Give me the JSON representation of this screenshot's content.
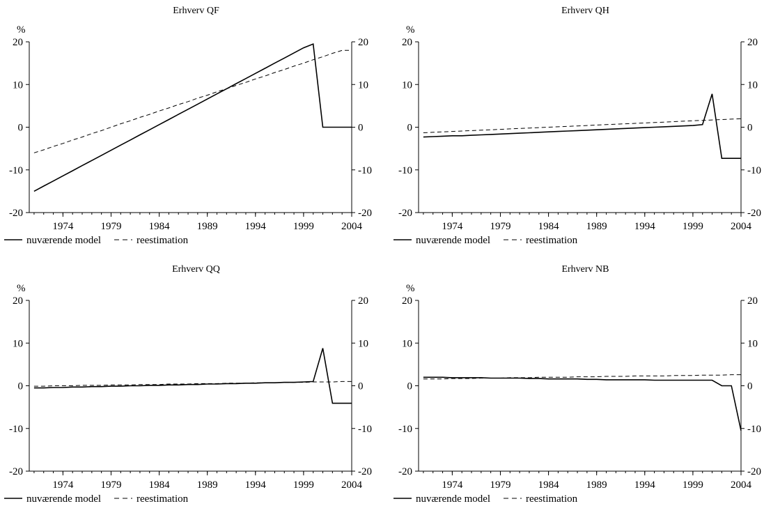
{
  "chart_data": [
    {
      "type": "line",
      "title": "Erhverv QF",
      "unit_label": "%",
      "ylim": [
        -20,
        20
      ],
      "yticks": [
        -20,
        -10,
        0,
        10,
        20
      ],
      "xlim": [
        1970.5,
        2004
      ],
      "xticks": [
        1974,
        1979,
        1984,
        1989,
        1994,
        1999,
        2004
      ],
      "grid": false,
      "legend_placement": "bottom-left",
      "x": [
        1971,
        1972,
        1973,
        1974,
        1975,
        1976,
        1977,
        1978,
        1979,
        1980,
        1981,
        1982,
        1983,
        1984,
        1985,
        1986,
        1987,
        1988,
        1989,
        1990,
        1991,
        1992,
        1993,
        1994,
        1995,
        1996,
        1997,
        1998,
        1999,
        2000,
        2001,
        2002,
        2003,
        2004
      ],
      "series": [
        {
          "name": "nuværende model",
          "style": "solid",
          "values": [
            -15.0,
            -13.8,
            -12.6,
            -11.4,
            -10.2,
            -9.0,
            -7.8,
            -6.6,
            -5.4,
            -4.2,
            -3.0,
            -1.8,
            -0.6,
            0.6,
            1.8,
            3.0,
            4.2,
            5.4,
            6.6,
            7.8,
            9.0,
            10.2,
            11.4,
            12.6,
            13.8,
            15.0,
            16.2,
            17.4,
            18.6,
            19.5,
            0.0,
            0.0,
            0.0,
            0.0
          ]
        },
        {
          "name": "reestimation",
          "style": "dashed",
          "values": [
            -6.0,
            -5.3,
            -4.5,
            -3.8,
            -3.0,
            -2.3,
            -1.5,
            -0.8,
            0.0,
            0.8,
            1.5,
            2.3,
            3.0,
            3.8,
            4.5,
            5.3,
            6.0,
            6.8,
            7.5,
            8.3,
            9.0,
            9.8,
            10.5,
            11.3,
            12.0,
            12.8,
            13.5,
            14.3,
            15.0,
            15.8,
            16.5,
            17.3,
            18.0,
            18.0
          ]
        }
      ]
    },
    {
      "type": "line",
      "title": "Erhverv QH",
      "unit_label": "%",
      "ylim": [
        -20,
        20
      ],
      "yticks": [
        -20,
        -10,
        0,
        10,
        20
      ],
      "xlim": [
        1970.5,
        2004
      ],
      "xticks": [
        1974,
        1979,
        1984,
        1989,
        1994,
        1999,
        2004
      ],
      "grid": false,
      "legend_placement": "bottom-left",
      "x": [
        1971,
        1972,
        1973,
        1974,
        1975,
        1976,
        1977,
        1978,
        1979,
        1980,
        1981,
        1982,
        1983,
        1984,
        1985,
        1986,
        1987,
        1988,
        1989,
        1990,
        1991,
        1992,
        1993,
        1994,
        1995,
        1996,
        1997,
        1998,
        1999,
        2000,
        2001,
        2002,
        2003,
        2004
      ],
      "series": [
        {
          "name": "nuværende model",
          "style": "solid",
          "values": [
            -2.3,
            -2.2,
            -2.1,
            -2.0,
            -2.0,
            -1.9,
            -1.8,
            -1.7,
            -1.6,
            -1.5,
            -1.4,
            -1.3,
            -1.2,
            -1.1,
            -1.0,
            -0.9,
            -0.8,
            -0.7,
            -0.6,
            -0.5,
            -0.4,
            -0.3,
            -0.2,
            -0.1,
            0.0,
            0.1,
            0.2,
            0.3,
            0.4,
            0.6,
            7.8,
            -7.3,
            -7.3,
            -7.3
          ]
        },
        {
          "name": "reestimation",
          "style": "dashed",
          "values": [
            -1.3,
            -1.2,
            -1.1,
            -1.0,
            -0.9,
            -0.8,
            -0.7,
            -0.6,
            -0.5,
            -0.4,
            -0.3,
            -0.2,
            -0.1,
            0.0,
            0.1,
            0.2,
            0.3,
            0.4,
            0.5,
            0.6,
            0.7,
            0.8,
            0.9,
            1.0,
            1.1,
            1.2,
            1.3,
            1.4,
            1.5,
            1.6,
            1.7,
            1.8,
            1.9,
            2.0
          ]
        }
      ]
    },
    {
      "type": "line",
      "title": "Erhverv QQ",
      "unit_label": "%",
      "ylim": [
        -20,
        20
      ],
      "yticks": [
        -20,
        -10,
        0,
        10,
        20
      ],
      "xlim": [
        1970.5,
        2004
      ],
      "xticks": [
        1974,
        1979,
        1984,
        1989,
        1994,
        1999,
        2004
      ],
      "grid": false,
      "legend_placement": "bottom-left",
      "x": [
        1971,
        1972,
        1973,
        1974,
        1975,
        1976,
        1977,
        1978,
        1979,
        1980,
        1981,
        1982,
        1983,
        1984,
        1985,
        1986,
        1987,
        1988,
        1989,
        1990,
        1991,
        1992,
        1993,
        1994,
        1995,
        1996,
        1997,
        1998,
        1999,
        2000,
        2001,
        2002,
        2003,
        2004
      ],
      "series": [
        {
          "name": "nuværende model",
          "style": "solid",
          "values": [
            -0.5,
            -0.5,
            -0.4,
            -0.4,
            -0.3,
            -0.3,
            -0.2,
            -0.2,
            -0.1,
            -0.1,
            0.0,
            0.0,
            0.1,
            0.1,
            0.2,
            0.2,
            0.3,
            0.3,
            0.4,
            0.4,
            0.5,
            0.5,
            0.6,
            0.6,
            0.7,
            0.7,
            0.8,
            0.8,
            0.9,
            1.0,
            8.8,
            -4.1,
            -4.1,
            -4.1
          ]
        },
        {
          "name": "reestimation",
          "style": "dashed",
          "values": [
            -0.1,
            -0.1,
            0.0,
            0.0,
            0.0,
            0.1,
            0.1,
            0.1,
            0.2,
            0.2,
            0.2,
            0.3,
            0.3,
            0.3,
            0.4,
            0.4,
            0.4,
            0.5,
            0.5,
            0.5,
            0.6,
            0.6,
            0.6,
            0.7,
            0.7,
            0.7,
            0.8,
            0.8,
            0.8,
            0.9,
            0.9,
            0.9,
            1.0,
            1.0
          ]
        }
      ]
    },
    {
      "type": "line",
      "title": "Erhverv NB",
      "unit_label": "%",
      "ylim": [
        -20,
        20
      ],
      "yticks": [
        -20,
        -10,
        0,
        10,
        20
      ],
      "xlim": [
        1970.5,
        2004
      ],
      "xticks": [
        1974,
        1979,
        1984,
        1989,
        1994,
        1999,
        2004
      ],
      "grid": false,
      "legend_placement": "bottom-left",
      "x": [
        1971,
        1972,
        1973,
        1974,
        1975,
        1976,
        1977,
        1978,
        1979,
        1980,
        1981,
        1982,
        1983,
        1984,
        1985,
        1986,
        1987,
        1988,
        1989,
        1990,
        1991,
        1992,
        1993,
        1994,
        1995,
        1996,
        1997,
        1998,
        1999,
        2000,
        2001,
        2002,
        2003,
        2004
      ],
      "series": [
        {
          "name": "nuværende model",
          "style": "solid",
          "values": [
            2.0,
            2.0,
            2.0,
            1.9,
            1.9,
            1.9,
            1.9,
            1.8,
            1.8,
            1.8,
            1.8,
            1.7,
            1.7,
            1.6,
            1.6,
            1.6,
            1.6,
            1.5,
            1.5,
            1.4,
            1.4,
            1.4,
            1.4,
            1.4,
            1.3,
            1.3,
            1.3,
            1.3,
            1.3,
            1.3,
            1.3,
            0.0,
            0.0,
            -10.5
          ]
        },
        {
          "name": "reestimation",
          "style": "dashed",
          "values": [
            1.6,
            1.6,
            1.6,
            1.7,
            1.7,
            1.7,
            1.8,
            1.8,
            1.8,
            1.9,
            1.9,
            1.9,
            2.0,
            2.0,
            2.0,
            2.0,
            2.1,
            2.1,
            2.1,
            2.2,
            2.2,
            2.2,
            2.3,
            2.3,
            2.3,
            2.3,
            2.4,
            2.4,
            2.4,
            2.5,
            2.5,
            2.5,
            2.6,
            2.6
          ]
        }
      ]
    }
  ]
}
